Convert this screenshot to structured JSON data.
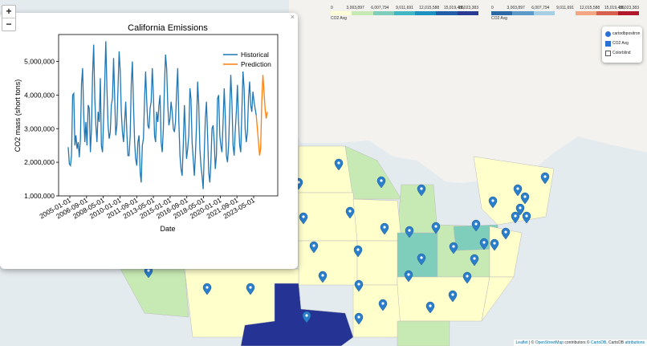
{
  "zoom": {
    "in_label": "+",
    "out_label": "−"
  },
  "popup": {
    "close_label": "×"
  },
  "chart_data": {
    "type": "line",
    "title": "California Emissions",
    "xlabel": "Date",
    "ylabel": "CO2 mass (short tons)",
    "ylim": [
      1000000,
      5800000
    ],
    "yticks": [
      1000000,
      2000000,
      3000000,
      4000000,
      5000000
    ],
    "ytick_labels": [
      "1,000,000",
      "2,000,000",
      "3,000,000",
      "4,000,000",
      "5,000,000"
    ],
    "xticks": [
      "2005-01-01",
      "2006-09-01",
      "2008-05-01",
      "2010-01-01",
      "2011-09-01",
      "2013-05-01",
      "2015-01-01",
      "2016-09-01",
      "2018-05-01",
      "2020-01-01",
      "2021-09-01",
      "2023-05-01"
    ],
    "legend_placement": "top-right",
    "series": [
      {
        "name": "Historical",
        "color": "#1f77b4",
        "values": [
          2450000,
          1950000,
          1900000,
          2200000,
          4000000,
          4050000,
          2500000,
          2800000,
          2400000,
          2600000,
          2150000,
          2700000,
          4300000,
          4800000,
          3400000,
          2600000,
          3200000,
          2500000,
          3700000,
          3600000,
          2300000,
          2950000,
          4600000,
          5500000,
          3900000,
          3100000,
          2600000,
          3500000,
          3200000,
          4500000,
          2500000,
          2300000,
          3300000,
          4400000,
          5600000,
          4200000,
          3100000,
          2700000,
          2900000,
          3700000,
          3900000,
          5100000,
          3900000,
          2800000,
          3100000,
          4200000,
          5300000,
          4700000,
          3500000,
          2900000,
          2600000,
          3200000,
          3800000,
          2900000,
          2200000,
          2200000,
          2800000,
          4300000,
          5000000,
          3700000,
          2600000,
          2100000,
          1900000,
          2600000,
          2800000,
          1700000,
          1400000,
          2500000,
          2700000,
          3900000,
          4700000,
          3800000,
          3100000,
          3000000,
          3600000,
          3800000,
          4800000,
          4000000,
          2800000,
          2600000,
          3500000,
          3200000,
          3700000,
          4000000,
          2600000,
          2300000,
          3000000,
          4300000,
          5200000,
          4800000,
          3700000,
          3100000,
          3300000,
          3800000,
          3500000,
          3000000,
          2900000,
          3200000,
          4100000,
          4800000,
          3200000,
          2200000,
          1800000,
          1600000,
          2500000,
          3700000,
          2900000,
          2100000,
          2400000,
          2800000,
          4200000,
          3900000,
          2600000,
          2100000,
          1600000,
          2200000,
          3100000,
          4400000,
          3700000,
          2400000,
          1900000,
          1600000,
          1200000,
          2300000,
          3300000,
          3800000,
          2800000,
          1700000,
          1400000,
          2000000,
          3000000,
          3100000,
          2600000,
          1800000,
          2200000,
          3900000,
          4000000,
          2800000,
          2500000,
          2300000,
          3200000,
          4200000,
          3400000,
          2200000,
          2000000,
          2500000,
          3600000,
          4600000,
          3800000,
          2500000,
          2200000,
          2900000,
          3500000,
          4300000,
          3200000,
          2500000,
          2300000,
          3500000,
          4700000,
          4200000,
          3000000,
          2600000,
          2900000,
          3900000,
          4400000,
          3700000,
          3500000,
          4100000,
          3800000,
          3600000,
          3400000
        ]
      },
      {
        "name": "Prediction",
        "color": "#ff7f0e",
        "values": [
          3400000,
          3000000,
          2600000,
          2200000,
          2400000,
          3800000,
          4600000,
          4100000,
          3600000,
          3300000,
          3500000
        ]
      }
    ]
  },
  "legends": [
    {
      "caption": "CO2 Avg",
      "ticks": [
        "0",
        "3,003,897",
        "6,007,794",
        "9,011,691",
        "12,015,588",
        "15,019,486",
        "18,023,383"
      ],
      "colors": [
        "#ffffd9",
        "#c7e9b4",
        "#7fcdbb",
        "#41b6c4",
        "#1d91c0",
        "#225ea8",
        "#2a3b94"
      ]
    },
    {
      "caption": "CO2 Avg",
      "ticks": [
        "0",
        "3,003,897",
        "6,007,794",
        "9,011,691",
        "12,015,588",
        "15,019,486",
        "18,023,383"
      ],
      "colors": [
        "#2b6aa6",
        "#5b9ac9",
        "#a6cfe6",
        "#f2f2f2",
        "#f4a582",
        "#d6604d",
        "#b2182b"
      ]
    }
  ],
  "layers": [
    {
      "label": "cartodbpositron",
      "type": "radio",
      "checked": true
    },
    {
      "label": "CO2 Avg",
      "type": "checkbox",
      "checked": true
    },
    {
      "label": "Colorblind",
      "type": "checkbox",
      "checked": false
    }
  ],
  "attribution": {
    "leaflet": "Leaflet",
    "sep": " | © ",
    "osm": "OpenStreetMap",
    "mid": " contributors © ",
    "carto": "CartoDB",
    "end": ", CartoDB ",
    "attr": "attributions"
  },
  "map_colors": {
    "water": "#e4ebef",
    "land": "#f3f2ef",
    "low": "#ffffcc",
    "mid": "#c7e9b4",
    "teal": "#7fcdbb",
    "texas": "#253494",
    "pin": "#2b7ec9"
  }
}
